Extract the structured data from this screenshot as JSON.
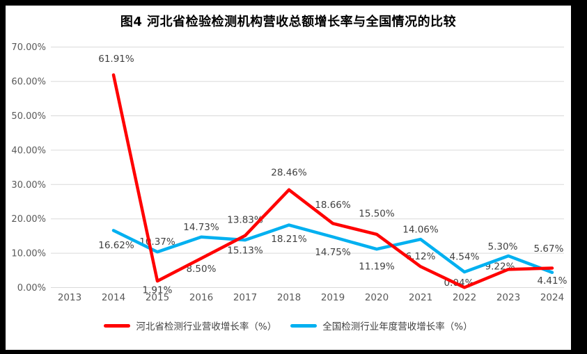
{
  "title": "图4 河北省检验检测机构营收总额增长率与全国情况的比较",
  "frame_color": "#000000",
  "chart_data": {
    "type": "line",
    "title": "图4 河北省检验检测机构营收总额增长率与全国情况的比较",
    "categories": [
      "2013",
      "2014",
      "2015",
      "2016",
      "2017",
      "2018",
      "2019",
      "2020",
      "2021",
      "2022",
      "2023",
      "2024"
    ],
    "y_axis": {
      "ticks": [
        "70.00%",
        "60.00%",
        "50.00%",
        "40.00%",
        "30.00%",
        "20.00%",
        "10.00%",
        "0.00%"
      ],
      "min": 0,
      "max": 70,
      "step": 10,
      "unit": "%"
    },
    "grid": true,
    "legend_position": "bottom",
    "colors": {
      "hebei": "#FF0000",
      "national": "#00B0F0",
      "gridline": "#D9D9D9",
      "axis_text": "#595959",
      "label_text": "#404040"
    },
    "series": [
      {
        "id": "hebei",
        "name": "河北省检测行业营收增长率（%）",
        "color": "#FF0000",
        "points": [
          {
            "year": "2014",
            "value": 61.91,
            "label": "61.91%",
            "dy": -23,
            "dx": 4
          },
          {
            "year": "2015",
            "value": 1.91,
            "label": "1.91%",
            "dy": 13
          },
          {
            "year": "2016",
            "value": 8.5,
            "label": "8.50%",
            "dy": 15
          },
          {
            "year": "2017",
            "value": 15.13,
            "label": "15.13%",
            "dy": 21
          },
          {
            "year": "2018",
            "value": 28.46,
            "label": "28.46%",
            "dy": -25
          },
          {
            "year": "2019",
            "value": 18.66,
            "label": "18.66%",
            "dy": -27
          },
          {
            "year": "2020",
            "value": 15.5,
            "label": "15.50%",
            "dy": -30
          },
          {
            "year": "2021",
            "value": 6.12,
            "label": "6.12%",
            "dy": -15
          },
          {
            "year": "2022",
            "value": 0.04,
            "label": "0.04%",
            "dy": -7,
            "dx": -8
          },
          {
            "year": "2023",
            "value": 5.3,
            "label": "5.30%",
            "dy": -33,
            "dx": -8
          },
          {
            "year": "2024",
            "value": 5.67,
            "label": "5.67%",
            "dy": -28,
            "dx": -5
          }
        ]
      },
      {
        "id": "national",
        "name": "全国检测行业年度营收增长率（%）",
        "color": "#00B0F0",
        "points": [
          {
            "year": "2014",
            "value": 16.62,
            "label": "16.62%",
            "dy": 21,
            "dx": 4
          },
          {
            "year": "2015",
            "value": 10.37,
            "label": "10.37%",
            "dy": -15
          },
          {
            "year": "2016",
            "value": 14.73,
            "label": "14.73%",
            "dy": -14
          },
          {
            "year": "2017",
            "value": 13.83,
            "label": "13.83%",
            "dy": -29
          },
          {
            "year": "2018",
            "value": 18.21,
            "label": "18.21%",
            "dy": 20
          },
          {
            "year": "2019",
            "value": 14.75,
            "label": "14.75%",
            "dy": 22
          },
          {
            "year": "2020",
            "value": 11.19,
            "label": "11.19%",
            "dy": 25
          },
          {
            "year": "2021",
            "value": 14.06,
            "label": "14.06%",
            "dy": -14
          },
          {
            "year": "2022",
            "value": 4.54,
            "label": "4.54%",
            "dy": -22
          },
          {
            "year": "2023",
            "value": 9.22,
            "label": "9.22%",
            "dy": 15,
            "dx": -12
          },
          {
            "year": "2024",
            "value": 4.41,
            "label": "4.41%",
            "dy": 12
          }
        ]
      }
    ]
  }
}
